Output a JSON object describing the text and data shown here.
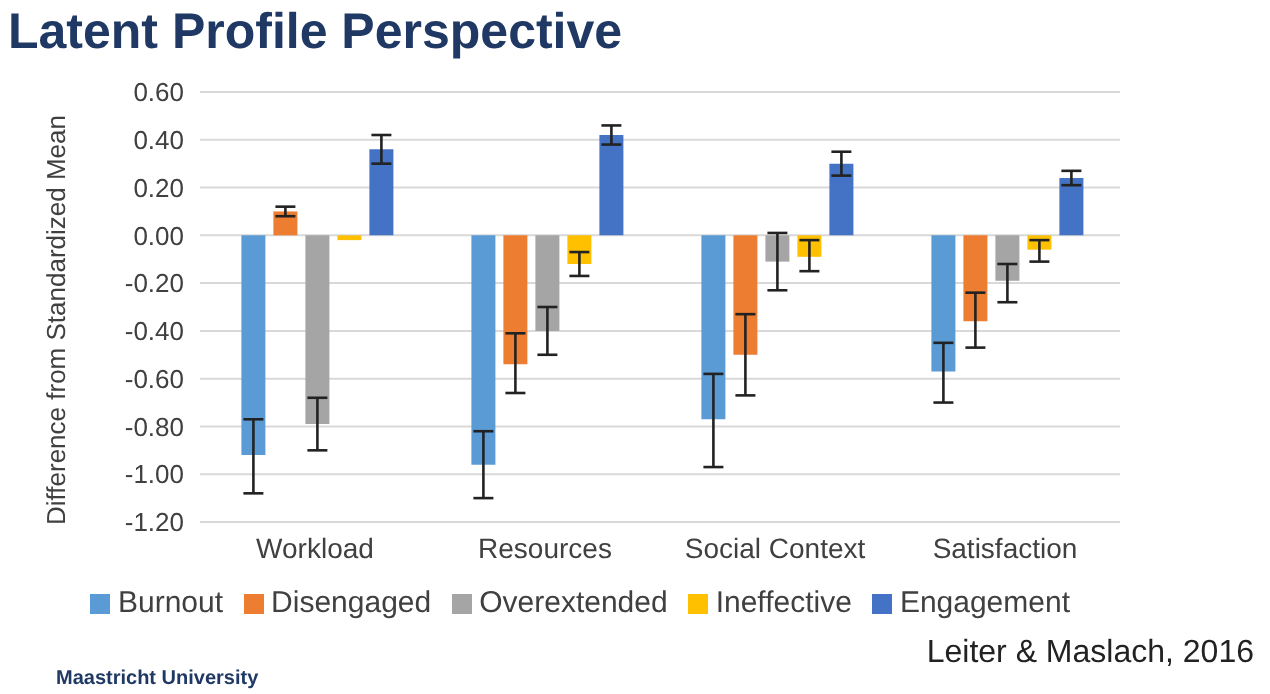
{
  "chart_data": {
    "type": "bar",
    "title": "Latent Profile Perspective",
    "ylabel": "Difference from Standardized Mean",
    "categories": [
      "Workload",
      "Resources",
      "Social Context",
      "Satisfaction"
    ],
    "series": [
      {
        "name": "Burnout",
        "color": "#5b9bd5",
        "values": [
          -0.92,
          -0.96,
          -0.77,
          -0.57
        ],
        "errors": [
          [
            -1.08,
            -0.77
          ],
          [
            -1.1,
            -0.82
          ],
          [
            -0.97,
            -0.58
          ],
          [
            -0.7,
            -0.45
          ]
        ]
      },
      {
        "name": "Disengaged",
        "color": "#ed7d31",
        "values": [
          0.1,
          -0.54,
          -0.5,
          -0.36
        ],
        "errors": [
          [
            0.08,
            0.12
          ],
          [
            -0.66,
            -0.41
          ],
          [
            -0.67,
            -0.33
          ],
          [
            -0.47,
            -0.24
          ]
        ]
      },
      {
        "name": "Overextended",
        "color": "#a5a5a5",
        "values": [
          -0.79,
          -0.4,
          -0.11,
          -0.19
        ],
        "errors": [
          [
            -0.9,
            -0.68
          ],
          [
            -0.5,
            -0.3
          ],
          [
            -0.23,
            0.01
          ],
          [
            -0.28,
            -0.12
          ]
        ]
      },
      {
        "name": "Ineffective",
        "color": "#ffc000",
        "values": [
          -0.02,
          -0.12,
          -0.09,
          -0.06
        ],
        "errors": [
          null,
          [
            -0.17,
            -0.07
          ],
          [
            -0.15,
            -0.02
          ],
          [
            -0.11,
            -0.02
          ]
        ]
      },
      {
        "name": "Engagement",
        "color": "#4472c4",
        "values": [
          0.36,
          0.42,
          0.3,
          0.24
        ],
        "errors": [
          [
            0.3,
            0.42
          ],
          [
            0.38,
            0.46
          ],
          [
            0.25,
            0.35
          ],
          [
            0.21,
            0.27
          ]
        ]
      }
    ],
    "ylim": [
      -1.2,
      0.6
    ],
    "yticks": [
      {
        "value": 0.6,
        "label": "0.60"
      },
      {
        "value": 0.4,
        "label": "0.40"
      },
      {
        "value": 0.2,
        "label": "0.20"
      },
      {
        "value": 0,
        "label": "0.00"
      },
      {
        "value": -0.2,
        "label": "-0.20"
      },
      {
        "value": -0.4,
        "label": "-0.40"
      },
      {
        "value": -0.6,
        "label": "-0.60"
      },
      {
        "value": -0.8,
        "label": "-0.80"
      },
      {
        "value": -1.0,
        "label": "-1.00"
      },
      {
        "value": -1.2,
        "label": "-1.20"
      }
    ],
    "grid": "y",
    "legend": "bottom",
    "annotations": [
      "Leiter & Maslach, 2016",
      "Maastricht University"
    ]
  }
}
